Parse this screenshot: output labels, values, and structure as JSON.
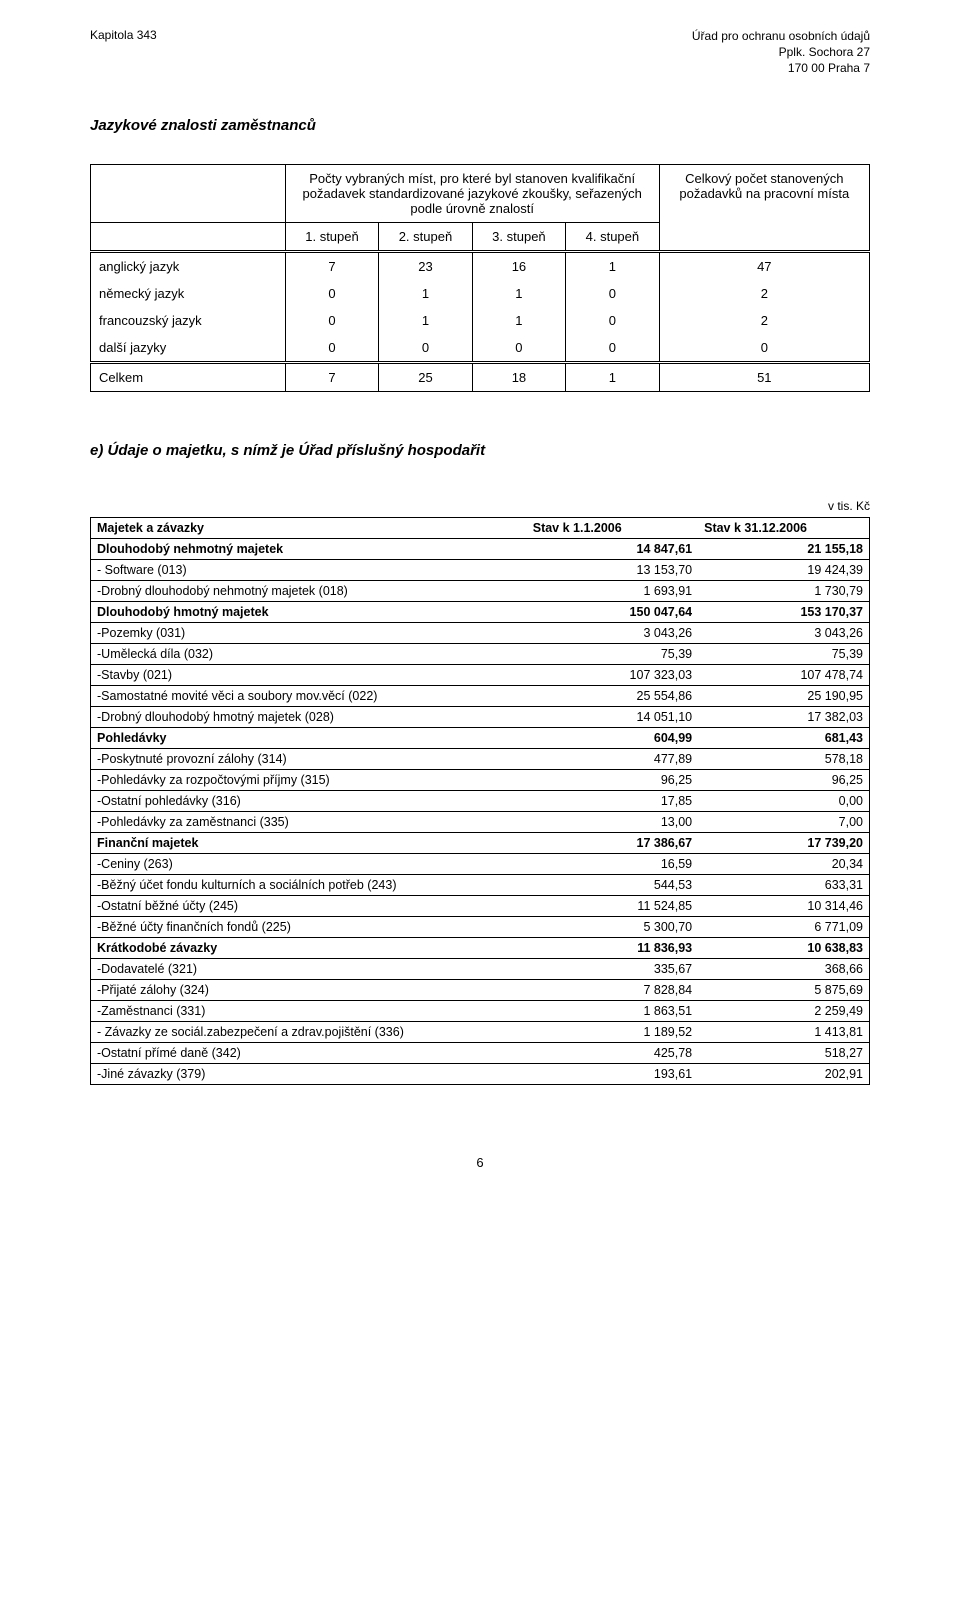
{
  "header": {
    "left": "Kapitola 343",
    "right1": "Úřad pro ochranu osobních údajů",
    "right2": "Pplk. Sochora 27",
    "right3": "170 00  Praha 7"
  },
  "section1": {
    "title": "Jazykové znalosti zaměstnanců",
    "col_group_label": "Počty vybraných míst, pro které byl stanoven kvalifikační požadavek standardizované jazykové zkoušky, seřazených podle úrovně znalostí",
    "total_col_label": "Celkový počet stanovených požadavků na pracovní místa",
    "levels": [
      "1. stupeň",
      "2. stupeň",
      "3. stupeň",
      "4. stupeň"
    ],
    "rows": [
      {
        "label": "anglický jazyk",
        "v": [
          "7",
          "23",
          "16",
          "1",
          "47"
        ]
      },
      {
        "label": "německý jazyk",
        "v": [
          "0",
          "1",
          "1",
          "0",
          "2"
        ]
      },
      {
        "label": "francouzský jazyk",
        "v": [
          "0",
          "1",
          "1",
          "0",
          "2"
        ]
      },
      {
        "label": "další jazyky",
        "v": [
          "0",
          "0",
          "0",
          "0",
          "0"
        ]
      }
    ],
    "total": {
      "label": "Celkem",
      "v": [
        "7",
        "25",
        "18",
        "1",
        "51"
      ]
    }
  },
  "section2": {
    "title": "e) Údaje o majetku, s nímž je Úřad příslušný hospodařit",
    "unit": "v tis. Kč",
    "head": [
      "Majetek a závazky",
      "Stav k 1.1.2006",
      "Stav k 31.12.2006"
    ],
    "rows": [
      {
        "bold": true,
        "c": [
          "Dlouhodobý nehmotný majetek",
          "14 847,61",
          "21 155,18"
        ]
      },
      {
        "bold": false,
        "c": [
          "- Software (013)",
          "13 153,70",
          "19 424,39"
        ]
      },
      {
        "bold": false,
        "c": [
          "-Drobný dlouhodobý nehmotný majetek (018)",
          "1 693,91",
          "1 730,79"
        ]
      },
      {
        "bold": true,
        "c": [
          "Dlouhodobý hmotný majetek",
          "150 047,64",
          "153 170,37"
        ]
      },
      {
        "bold": false,
        "c": [
          "-Pozemky (031)",
          "3 043,26",
          "3 043,26"
        ]
      },
      {
        "bold": false,
        "c": [
          "-Umělecká díla (032)",
          "75,39",
          "75,39"
        ]
      },
      {
        "bold": false,
        "c": [
          "-Stavby (021)",
          "107 323,03",
          "107 478,74"
        ]
      },
      {
        "bold": false,
        "c": [
          "-Samostatné movité věci a soubory mov.věcí (022)",
          "25 554,86",
          "25 190,95"
        ]
      },
      {
        "bold": false,
        "c": [
          "-Drobný dlouhodobý hmotný majetek (028)",
          "14 051,10",
          "17 382,03"
        ]
      },
      {
        "bold": true,
        "c": [
          "Pohledávky",
          "604,99",
          "681,43"
        ]
      },
      {
        "bold": false,
        "c": [
          "-Poskytnuté provozní zálohy (314)",
          "477,89",
          "578,18"
        ]
      },
      {
        "bold": false,
        "c": [
          "-Pohledávky za rozpočtovými příjmy (315)",
          "96,25",
          "96,25"
        ]
      },
      {
        "bold": false,
        "c": [
          "-Ostatní pohledávky (316)",
          "17,85",
          "0,00"
        ]
      },
      {
        "bold": false,
        "c": [
          "-Pohledávky za zaměstnanci (335)",
          "13,00",
          "7,00"
        ]
      },
      {
        "bold": true,
        "c": [
          "Finanční majetek",
          "17 386,67",
          "17 739,20"
        ]
      },
      {
        "bold": false,
        "c": [
          "-Ceniny (263)",
          "16,59",
          "20,34"
        ]
      },
      {
        "bold": false,
        "c": [
          "-Běžný účet fondu kulturních a sociálních potřeb (243)",
          "544,53",
          "633,31"
        ]
      },
      {
        "bold": false,
        "c": [
          "-Ostatní běžné účty (245)",
          "11 524,85",
          "10 314,46"
        ]
      },
      {
        "bold": false,
        "c": [
          "-Běžné účty finančních fondů (225)",
          "5 300,70",
          "6 771,09"
        ]
      },
      {
        "bold": true,
        "c": [
          "Krátkodobé závazky",
          "11 836,93",
          "10 638,83"
        ]
      },
      {
        "bold": false,
        "c": [
          "-Dodavatelé (321)",
          "335,67",
          "368,66"
        ]
      },
      {
        "bold": false,
        "c": [
          "-Přijaté zálohy (324)",
          "7 828,84",
          "5 875,69"
        ]
      },
      {
        "bold": false,
        "c": [
          "-Zaměstnanci (331)",
          "1 863,51",
          "2 259,49"
        ]
      },
      {
        "bold": false,
        "c": [
          "- Závazky ze sociál.zabezpečení a zdrav.pojištění (336)",
          "1 189,52",
          "1 413,81"
        ]
      },
      {
        "bold": false,
        "c": [
          "-Ostatní přímé daně (342)",
          "425,78",
          "518,27"
        ]
      },
      {
        "bold": false,
        "c": [
          "-Jiné závazky (379)",
          "193,61",
          "202,91"
        ]
      }
    ]
  },
  "page_number": "6"
}
